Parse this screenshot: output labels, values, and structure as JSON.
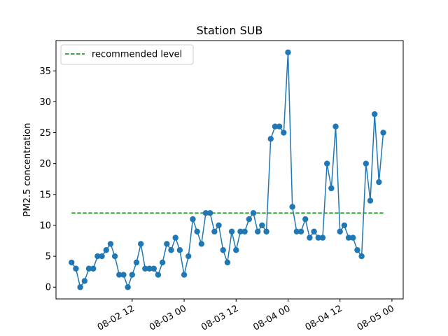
{
  "chart_data": {
    "type": "line",
    "title": "Station SUB",
    "xlabel": "",
    "ylabel": "PM2.5 concentration",
    "x_start": "2024-08-01 22:00",
    "x_step_hours": 1,
    "x_ticks": [
      {
        "label": "08-02 12",
        "hours_from_start": 14
      },
      {
        "label": "08-03 00",
        "hours_from_start": 26
      },
      {
        "label": "08-03 12",
        "hours_from_start": 38
      },
      {
        "label": "08-04 00",
        "hours_from_start": 50
      },
      {
        "label": "08-04 12",
        "hours_from_start": 62
      },
      {
        "label": "08-05 00",
        "hours_from_start": 74
      }
    ],
    "y_ticks": [
      0,
      5,
      10,
      15,
      20,
      25,
      30,
      35
    ],
    "xlim_hours": [
      -3.6,
      76.6
    ],
    "ylim": [
      -1.9,
      39.9
    ],
    "series": [
      {
        "name": "",
        "color": "#1f77b4",
        "values": [
          4,
          3,
          0,
          1,
          3,
          3,
          5,
          5,
          6,
          7,
          5,
          2,
          2,
          0,
          2,
          4,
          7,
          3,
          3,
          3,
          2,
          4,
          7,
          6,
          8,
          6,
          2,
          5,
          11,
          9,
          7,
          12,
          12,
          9,
          10,
          6,
          4,
          9,
          6,
          9,
          9,
          11,
          12,
          9,
          10,
          9,
          24,
          26,
          26,
          25,
          38,
          13,
          9,
          9,
          11,
          8,
          9,
          8,
          8,
          20,
          16,
          26,
          9,
          10,
          8,
          8,
          6,
          5,
          20,
          14,
          28,
          17,
          25
        ]
      }
    ],
    "reference_line": {
      "name": "recommended level",
      "value": 12,
      "color": "#008000",
      "style": "dashed"
    },
    "legend_position": "upper-left",
    "grid": false
  }
}
